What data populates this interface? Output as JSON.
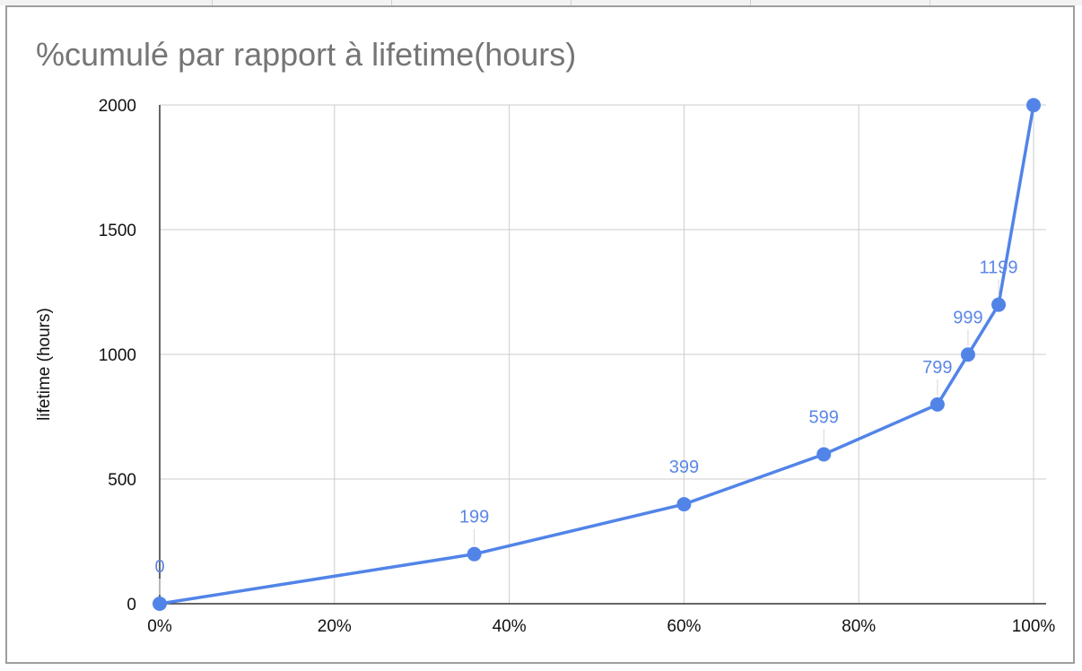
{
  "chart_data": {
    "type": "line",
    "title": "%cumulé par rapport à lifetime(hours)",
    "xlabel": "",
    "ylabel": "lifetime (hours)",
    "x_format": "percent",
    "xlim": [
      0,
      1
    ],
    "ylim": [
      0,
      2000
    ],
    "x_ticks": [
      0,
      0.2,
      0.4,
      0.6,
      0.8,
      1.0
    ],
    "x_tick_labels": [
      "0%",
      "20%",
      "40%",
      "60%",
      "80%",
      "100%"
    ],
    "y_ticks": [
      0,
      500,
      1000,
      1500,
      2000
    ],
    "y_tick_labels": [
      "0",
      "500",
      "1000",
      "1500",
      "2000"
    ],
    "grid": true,
    "legend": "none",
    "series": [
      {
        "color": "#5284e8",
        "x": [
          0,
          0.36,
          0.6,
          0.76,
          0.89,
          0.925,
          0.96,
          1.0
        ],
        "y": [
          0,
          199,
          399,
          599,
          799,
          999,
          1199,
          1999
        ],
        "point_labels": [
          "0",
          "199",
          "399",
          "599",
          "799",
          "999",
          "1199",
          ""
        ]
      }
    ]
  }
}
